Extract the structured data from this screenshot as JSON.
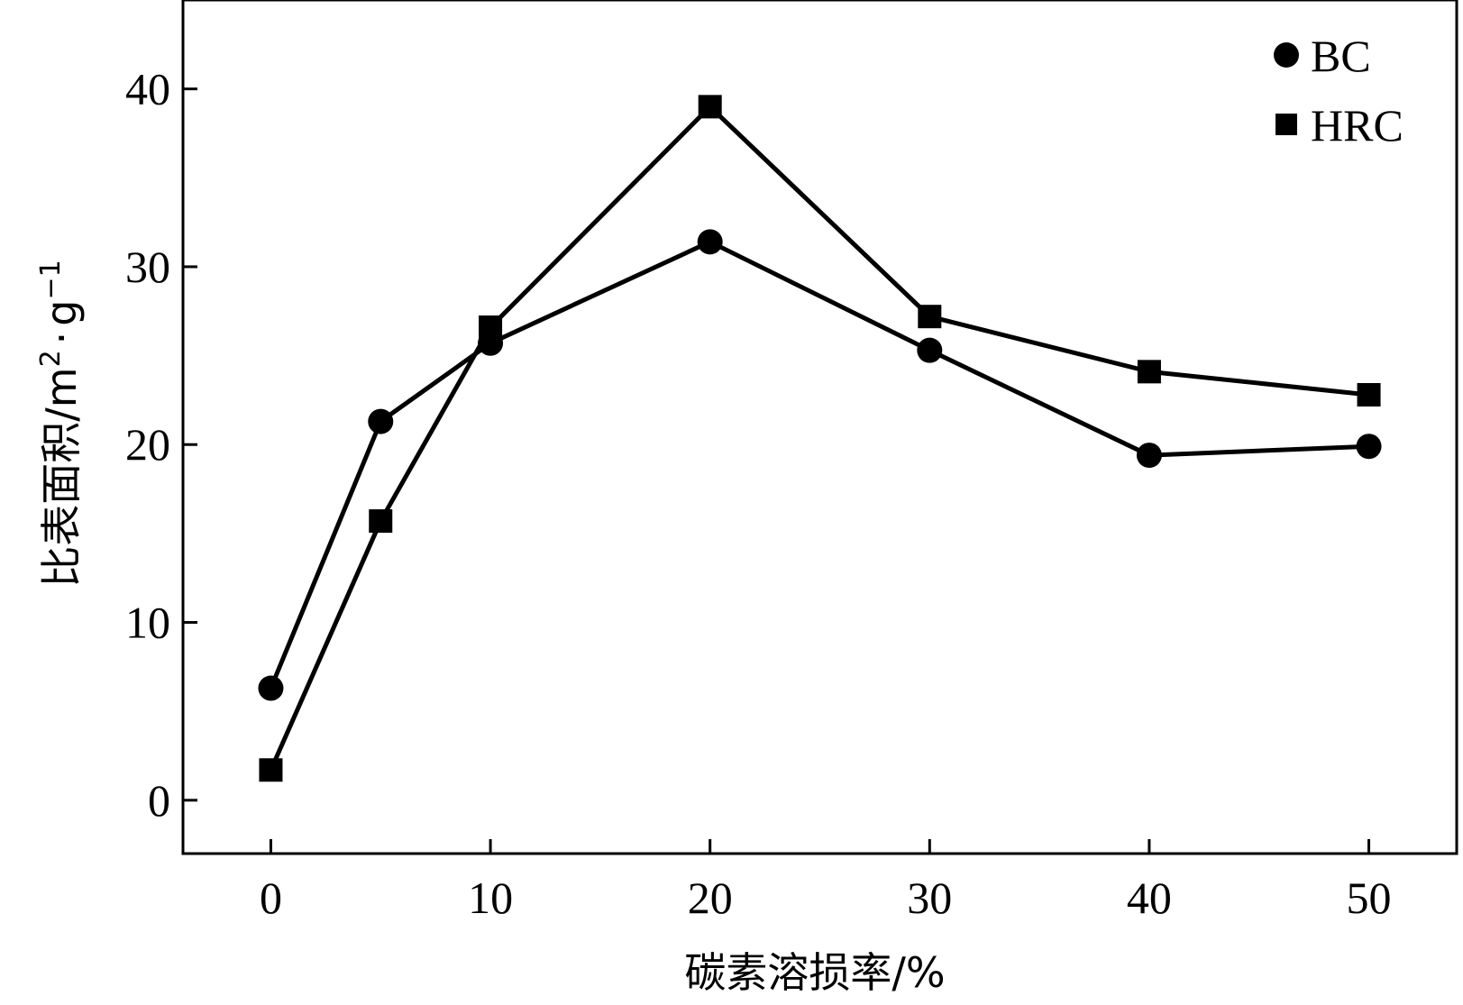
{
  "chart_data": {
    "type": "line",
    "title": "",
    "xlabel": "碳素溶损率/%",
    "ylabel": "比表面积/m²·g⁻¹",
    "ylabel_parts": {
      "main": "比表面积/m",
      "sup1": "2",
      "dot": "·",
      "unit": "g",
      "sup2": "−1"
    },
    "xlim": [
      -4,
      54
    ],
    "ylim": [
      -3,
      45
    ],
    "x_ticks": [
      0,
      10,
      20,
      30,
      40,
      50
    ],
    "y_ticks": [
      0,
      10,
      20,
      30,
      40
    ],
    "grid": false,
    "legend_position": "top-right",
    "series": [
      {
        "name": "BC",
        "marker": "circle",
        "color": "#000000",
        "x": [
          0,
          5,
          10,
          20,
          30,
          40,
          50
        ],
        "y": [
          6.3,
          21.3,
          25.7,
          31.4,
          25.3,
          19.4,
          19.9
        ]
      },
      {
        "name": "HRC",
        "marker": "square",
        "color": "#000000",
        "x": [
          0,
          5,
          10,
          20,
          30,
          40,
          50
        ],
        "y": [
          1.7,
          15.7,
          26.6,
          39.0,
          27.2,
          24.1,
          22.8
        ]
      }
    ]
  }
}
